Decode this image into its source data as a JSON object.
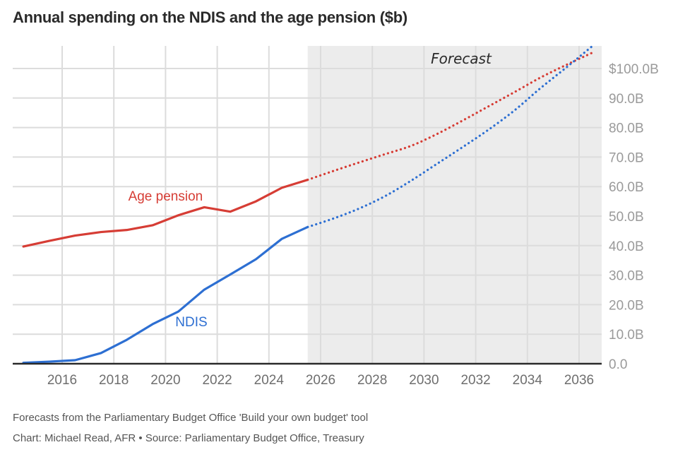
{
  "title": "Annual spending on the NDIS and the age pension ($b)",
  "footer": {
    "note": "Forecasts from the Parliamentary Budget Office 'Build your own budget' tool",
    "credit": "Chart: Michael Read, AFR • Source: Parliamentary Budget Office, Treasury"
  },
  "chart_data": {
    "type": "line",
    "title": "Annual spending on the NDIS and the age pension ($b)",
    "xlabel": "",
    "ylabel": "",
    "xlim": [
      2014.3,
      2036.9
    ],
    "ylim": [
      0,
      108
    ],
    "grid": true,
    "x_ticks": [
      2016,
      2018,
      2020,
      2022,
      2024,
      2026,
      2028,
      2030,
      2032,
      2034,
      2036
    ],
    "x_tick_labels": [
      "2016",
      "2018",
      "2020",
      "2022",
      "2024",
      "2026",
      "2028",
      "2030",
      "2032",
      "2034",
      "2036"
    ],
    "y_ticks": [
      0,
      10,
      20,
      30,
      40,
      50,
      60,
      70,
      80,
      90,
      100
    ],
    "y_tick_labels": [
      "0.0",
      "10.0B",
      "20.0B",
      "30.0B",
      "40.0B",
      "50.0B",
      "60.0B",
      "70.0B",
      "80.0B",
      "90.0B",
      "$100.0B"
    ],
    "y_axis_position": "right",
    "forecast_region": {
      "start": 2025.5,
      "end": 2036.9,
      "label": "Forecast",
      "color": "#ececec"
    },
    "series": [
      {
        "name": "Age pension",
        "color": "#d63d35",
        "x": [
          2014.5,
          2015.5,
          2016.5,
          2017.5,
          2018.5,
          2019.5,
          2020.5,
          2021.5,
          2022.5,
          2023.5,
          2024.5,
          2025.5
        ],
        "values": [
          39.7,
          41.6,
          43.4,
          44.6,
          45.3,
          46.9,
          50.3,
          53.0,
          51.5,
          55.0,
          59.6,
          62.3
        ],
        "forecast_x": [
          2025.5,
          2026.5,
          2027.5,
          2028.5,
          2029.5,
          2030.5,
          2031.5,
          2032.5,
          2033.5,
          2034.5,
          2035.5,
          2036.5
        ],
        "forecast_values": [
          62.3,
          65.3,
          68.2,
          71.0,
          73.8,
          77.8,
          82.4,
          87.2,
          92.0,
          96.9,
          101.2,
          105.3
        ]
      },
      {
        "name": "NDIS",
        "color": "#2d6fd2",
        "x": [
          2014.5,
          2015.5,
          2016.5,
          2017.5,
          2018.5,
          2019.5,
          2020.5,
          2021.5,
          2022.5,
          2023.5,
          2024.5,
          2025.5
        ],
        "values": [
          0.3,
          0.7,
          1.2,
          3.6,
          8.1,
          13.4,
          17.7,
          25.1,
          30.2,
          35.4,
          42.3,
          46.3
        ],
        "forecast_x": [
          2025.5,
          2026.5,
          2027.5,
          2028.5,
          2029.5,
          2030.5,
          2031.5,
          2032.5,
          2033.5,
          2034.5,
          2035.5,
          2036.5
        ],
        "forecast_values": [
          46.3,
          49.2,
          52.6,
          56.8,
          62.0,
          67.7,
          73.4,
          79.3,
          85.8,
          93.3,
          100.3,
          107.5
        ]
      }
    ],
    "annotations": [
      {
        "text": "Age pension",
        "x": 2020.0,
        "y": 55.3,
        "color": "#d63d35"
      },
      {
        "text": "NDIS",
        "x": 2021.0,
        "y": 12.7,
        "color": "#2d6fd2"
      }
    ]
  }
}
